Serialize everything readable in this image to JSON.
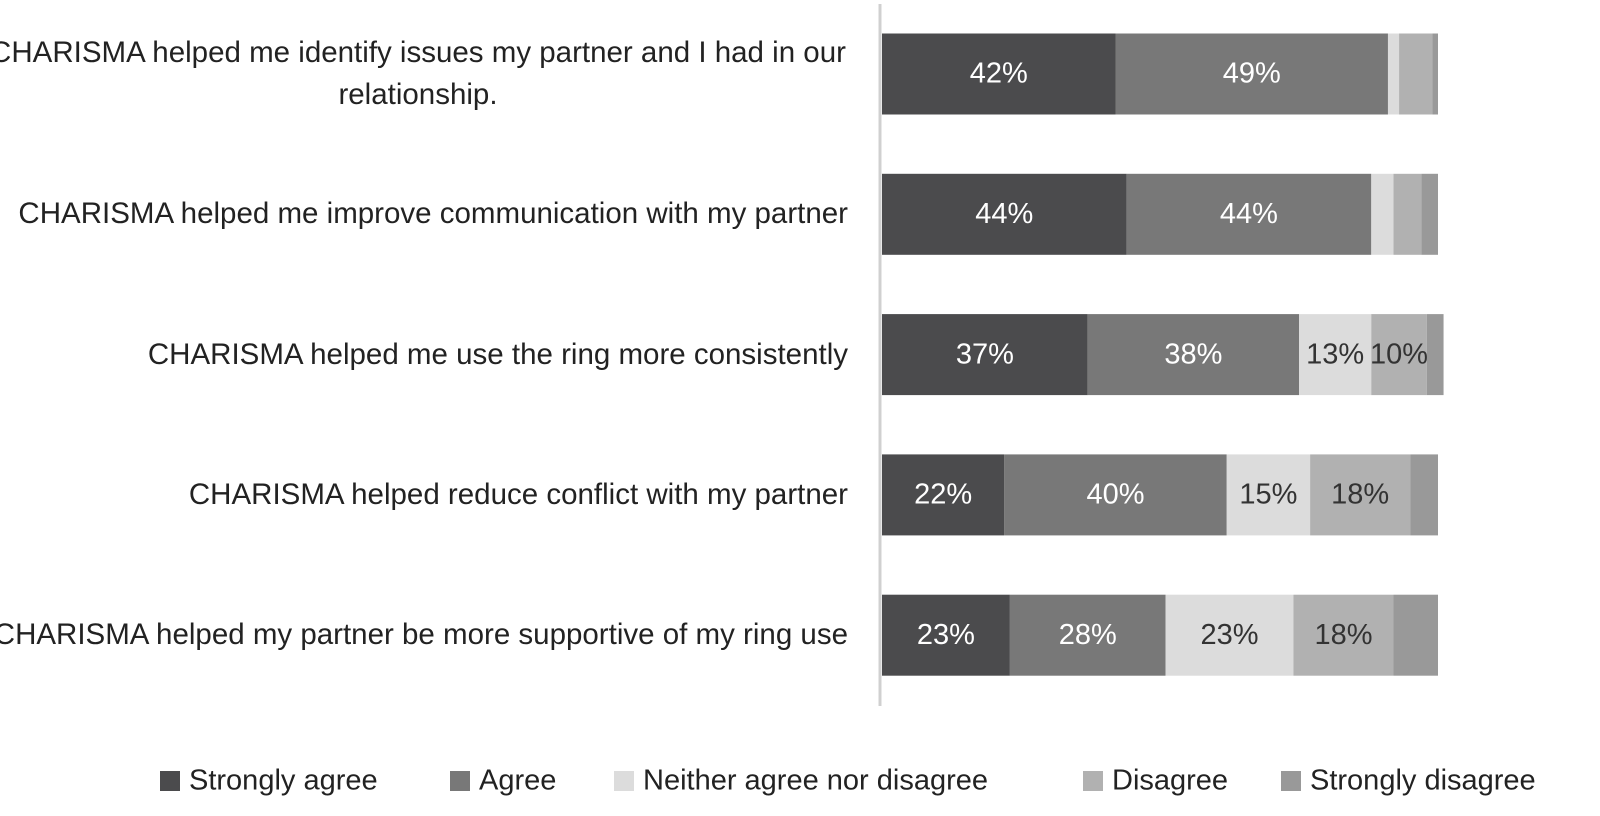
{
  "chart_data": {
    "type": "stacked-barh",
    "categories": [
      "CHARISMA helped me identify issues my partner and I had in our relationship.",
      "CHARISMA helped me improve communication with my partner",
      "CHARISMA helped me use the ring more consistently",
      "CHARISMA helped reduce conflict with my partner",
      "CHARISMA helped my partner be more supportive of my ring use"
    ],
    "xlim": [
      0,
      100
    ],
    "series": [
      {
        "name": "Strongly agree",
        "color": "#4b4b4d",
        "label_color": "#ffffff",
        "values": [
          42,
          44,
          37,
          22,
          23
        ],
        "value_labels": [
          "42%",
          "44%",
          "37%",
          "22%",
          "23%"
        ]
      },
      {
        "name": "Agree",
        "color": "#787878",
        "label_color": "#ffffff",
        "values": [
          49,
          44,
          38,
          40,
          28
        ],
        "value_labels": [
          "49%",
          "44%",
          "38%",
          "40%",
          "28%"
        ]
      },
      {
        "name": "Neither agree nor disagree",
        "color": "#dcdcdc",
        "label_color": "#333333",
        "values": [
          2,
          4,
          13,
          15,
          23
        ],
        "value_labels": [
          null,
          null,
          "13%",
          "15%",
          "23%"
        ]
      },
      {
        "name": "Disagree",
        "color": "#b1b1b1",
        "label_color": "#333333",
        "values": [
          6,
          5,
          10,
          18,
          18
        ],
        "value_labels": [
          null,
          null,
          "10%",
          "18%",
          "18%"
        ]
      },
      {
        "name": "Strongly disagree",
        "color": "#999999",
        "label_color": "#333333",
        "values": [
          1,
          3,
          3,
          5,
          8
        ],
        "value_labels": [
          null,
          null,
          null,
          null,
          null
        ]
      }
    ]
  }
}
